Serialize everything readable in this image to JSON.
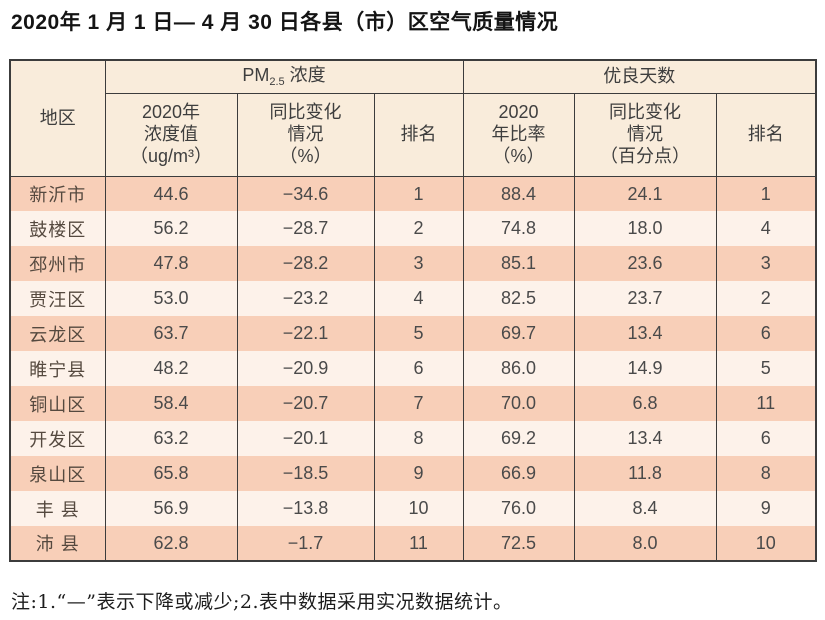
{
  "title": "2020年 1 月 1 日— 4 月 30 日各县（市）区空气质量情况",
  "note": "注:1.“—”表示下降或减少;2.表中数据采用实况数据统计。",
  "colors": {
    "border": "#3c3c3c",
    "header_bg": "#f9ecdb",
    "row_odd": "#f8cfb8",
    "row_even": "#fdf2ea",
    "text": "#4a4a4a"
  },
  "table": {
    "region_header": "地区",
    "pm_group": {
      "pre": "PM",
      "sub": "2.5",
      "post": " 浓度"
    },
    "good_group": "优良天数",
    "sub_headers": [
      "2020年\n浓度值\n（ug/m³）",
      "同比变化\n情况\n（%）",
      "排名",
      "2020\n年比率\n（%）",
      "同比变化\n情况\n（百分点）",
      "排名"
    ],
    "rows": [
      {
        "region": "新沂市",
        "pm_value": "44.6",
        "pm_change": "−34.6",
        "pm_rank": "1",
        "good_ratio": "88.4",
        "good_change": "24.1",
        "good_rank": "1"
      },
      {
        "region": "鼓楼区",
        "pm_value": "56.2",
        "pm_change": "−28.7",
        "pm_rank": "2",
        "good_ratio": "74.8",
        "good_change": "18.0",
        "good_rank": "4"
      },
      {
        "region": "邳州市",
        "pm_value": "47.8",
        "pm_change": "−28.2",
        "pm_rank": "3",
        "good_ratio": "85.1",
        "good_change": "23.6",
        "good_rank": "3"
      },
      {
        "region": "贾汪区",
        "pm_value": "53.0",
        "pm_change": "−23.2",
        "pm_rank": "4",
        "good_ratio": "82.5",
        "good_change": "23.7",
        "good_rank": "2"
      },
      {
        "region": "云龙区",
        "pm_value": "63.7",
        "pm_change": "−22.1",
        "pm_rank": "5",
        "good_ratio": "69.7",
        "good_change": "13.4",
        "good_rank": "6"
      },
      {
        "region": "睢宁县",
        "pm_value": "48.2",
        "pm_change": "−20.9",
        "pm_rank": "6",
        "good_ratio": "86.0",
        "good_change": "14.9",
        "good_rank": "5"
      },
      {
        "region": "铜山区",
        "pm_value": "58.4",
        "pm_change": "−20.7",
        "pm_rank": "7",
        "good_ratio": "70.0",
        "good_change": "6.8",
        "good_rank": "11"
      },
      {
        "region": "开发区",
        "pm_value": "63.2",
        "pm_change": "−20.1",
        "pm_rank": "8",
        "good_ratio": "69.2",
        "good_change": "13.4",
        "good_rank": "6"
      },
      {
        "region": "泉山区",
        "pm_value": "65.8",
        "pm_change": "−18.5",
        "pm_rank": "9",
        "good_ratio": "66.9",
        "good_change": "11.8",
        "good_rank": "8"
      },
      {
        "region": "丰 县",
        "pm_value": "56.9",
        "pm_change": "−13.8",
        "pm_rank": "10",
        "good_ratio": "76.0",
        "good_change": "8.4",
        "good_rank": "9"
      },
      {
        "region": "沛 县",
        "pm_value": "62.8",
        "pm_change": "−1.7",
        "pm_rank": "11",
        "good_ratio": "72.5",
        "good_change": "8.0",
        "good_rank": "10"
      }
    ]
  }
}
